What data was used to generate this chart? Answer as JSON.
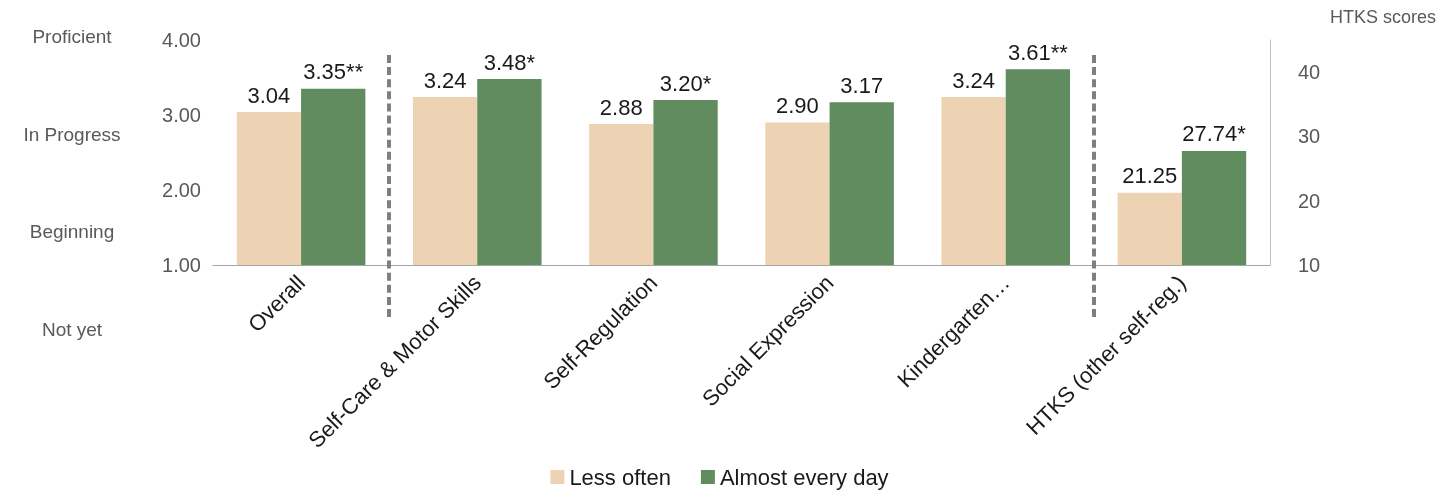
{
  "chart_data": {
    "type": "bar",
    "categories": [
      "Overall",
      "Self-Care & Motor Skills",
      "Self-Regulation",
      "Social Expression",
      "Kindergarten…",
      "HTKS (other self-reg.)"
    ],
    "series": [
      {
        "name": "Less often",
        "color": "#edd3b4",
        "values": [
          3.04,
          3.24,
          2.88,
          2.9,
          3.24,
          null
        ],
        "value_labels": [
          "3.04",
          "3.24",
          "2.88",
          "2.90",
          "3.24",
          null
        ]
      },
      {
        "name": "Almost every day",
        "color": "#618c60",
        "values": [
          3.35,
          3.48,
          3.2,
          3.17,
          3.61,
          null
        ],
        "value_labels": [
          "3.35**",
          "3.48*",
          "3.20*",
          "3.17",
          "3.61**",
          null
        ]
      },
      {
        "color": "#edd3b4",
        "axis": "y2",
        "values": [
          null,
          null,
          null,
          null,
          null,
          21.25
        ],
        "value_labels": [
          null,
          null,
          null,
          null,
          null,
          "21.25"
        ]
      },
      {
        "color": "#618c60",
        "axis": "y2",
        "values": [
          null,
          null,
          null,
          null,
          null,
          27.74
        ],
        "value_labels": [
          null,
          null,
          null,
          null,
          null,
          "27.74*"
        ]
      }
    ],
    "ylim": [
      1,
      4
    ],
    "yticks": [
      {
        "value": 1,
        "label": "1.00"
      },
      {
        "value": 2,
        "label": "2.00"
      },
      {
        "value": 3,
        "label": "3.00"
      },
      {
        "value": 4,
        "label": "4.00"
      }
    ],
    "y2label": "HTKS scores",
    "y2lim": [
      10,
      45
    ],
    "y2ticks": [
      10,
      20,
      30,
      40
    ],
    "annotations": [
      "Proficient",
      "In Progress",
      "Beginning",
      "Not yet"
    ],
    "grid": false,
    "legend": "bottom"
  }
}
